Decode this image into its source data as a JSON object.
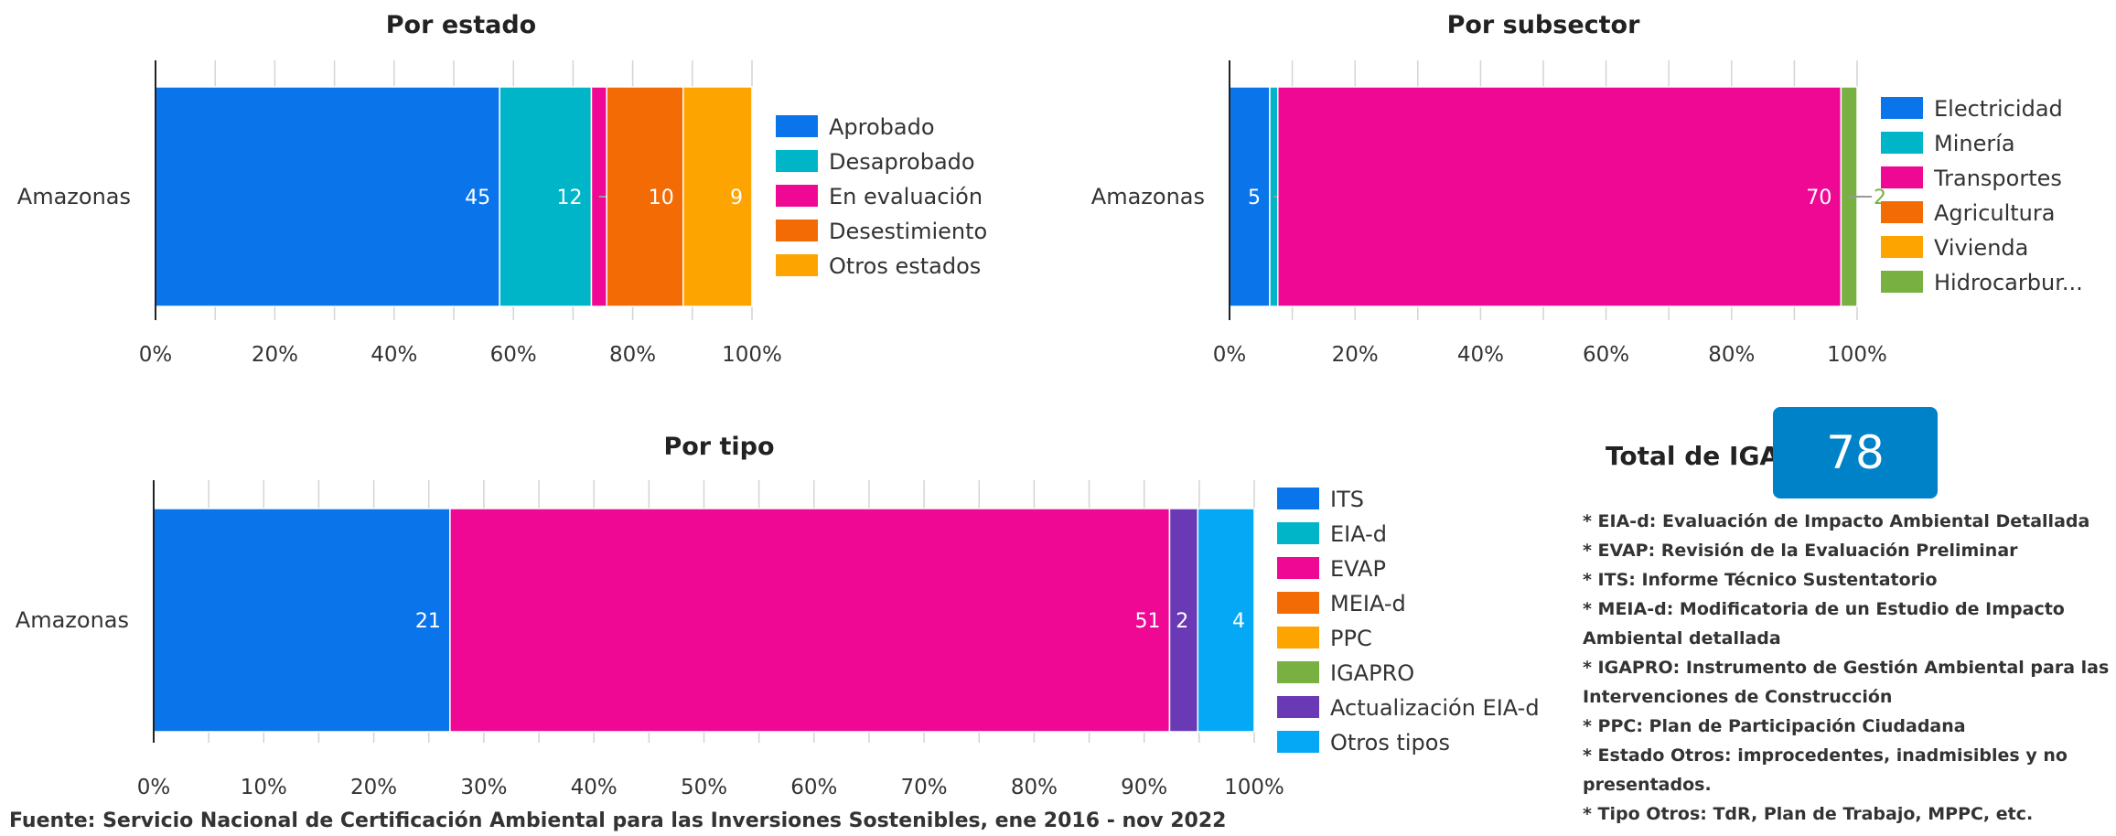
{
  "chart_data": [
    {
      "type": "bar",
      "orientation": "horizontal-stacked-percent",
      "title": "Por estado",
      "categories": [
        "Amazonas"
      ],
      "series": [
        {
          "name": "Aprobado",
          "values": [
            45
          ],
          "color": "#0a74ea"
        },
        {
          "name": "Desaprobado",
          "values": [
            12
          ],
          "color": "#00b5c8"
        },
        {
          "name": "En evaluación",
          "values": [
            2
          ],
          "color": "#ef0894"
        },
        {
          "name": "Desestimiento",
          "values": [
            10
          ],
          "color": "#f36b04"
        },
        {
          "name": "Otros estados",
          "values": [
            9
          ],
          "color": "#fea400"
        }
      ],
      "ticks": [
        "0%",
        "20%",
        "40%",
        "60%",
        "80%",
        "100%"
      ],
      "legend": "right"
    },
    {
      "type": "bar",
      "orientation": "horizontal-stacked-percent",
      "title": "Por subsector",
      "categories": [
        "Amazonas"
      ],
      "series": [
        {
          "name": "Electricidad",
          "values": [
            5
          ],
          "color": "#0a74ea"
        },
        {
          "name": "Minería",
          "values": [
            1
          ],
          "color": "#00b5c8"
        },
        {
          "name": "Transportes",
          "values": [
            70
          ],
          "color": "#ef0894"
        },
        {
          "name": "Agricultura",
          "values": [
            0
          ],
          "color": "#f36b04"
        },
        {
          "name": "Vivienda",
          "values": [
            0
          ],
          "color": "#fea400"
        },
        {
          "name": "Hidrocarbur...",
          "values": [
            2
          ],
          "color": "#78b042"
        }
      ],
      "ticks": [
        "0%",
        "20%",
        "40%",
        "60%",
        "80%",
        "100%"
      ],
      "legend": "right"
    },
    {
      "type": "bar",
      "orientation": "horizontal-stacked-percent",
      "title": "Por tipo",
      "categories": [
        "Amazonas"
      ],
      "series": [
        {
          "name": "ITS",
          "values": [
            21
          ],
          "color": "#0a74ea"
        },
        {
          "name": "EIA-d",
          "values": [
            0
          ],
          "color": "#00b5c8"
        },
        {
          "name": "EVAP",
          "values": [
            51
          ],
          "color": "#ef0894"
        },
        {
          "name": "MEIA-d",
          "values": [
            0
          ],
          "color": "#f36b04"
        },
        {
          "name": "PPC",
          "values": [
            0
          ],
          "color": "#fea400"
        },
        {
          "name": "IGAPRO",
          "values": [
            0
          ],
          "color": "#78b042"
        },
        {
          "name": "Actualización EIA-d",
          "values": [
            2
          ],
          "color": "#6a3ab6"
        },
        {
          "name": "Otros tipos",
          "values": [
            4
          ],
          "color": "#04a8f4"
        }
      ],
      "ticks": [
        "0%",
        "10%",
        "20%",
        "30%",
        "40%",
        "50%",
        "60%",
        "70%",
        "80%",
        "90%",
        "100%"
      ],
      "legend": "right"
    }
  ],
  "total": {
    "label": "Total de IGA",
    "value": "78"
  },
  "notes": [
    "* EIA-d: Evaluación de Impacto Ambiental Detallada",
    "* EVAP: Revisión de la Evaluación Preliminar",
    "* ITS: Informe Técnico Sustentatorio",
    "* MEIA-d: Modificatoria de un Estudio de Impacto Ambiental detallada",
    "* IGAPRO: Instrumento de Gestión Ambiental para las Intervenciones de Construcción",
    "* PPC: Plan de Participación Ciudadana",
    "* Estado Otros: improcedentes, inadmisibles y no presentados.",
    "* Tipo Otros: TdR, Plan de Trabajo, MPPC, etc."
  ],
  "source": "Fuente: Servicio Nacional de Certificación Ambiental para las Inversiones Sostenibles, ene 2016 - nov 2022"
}
